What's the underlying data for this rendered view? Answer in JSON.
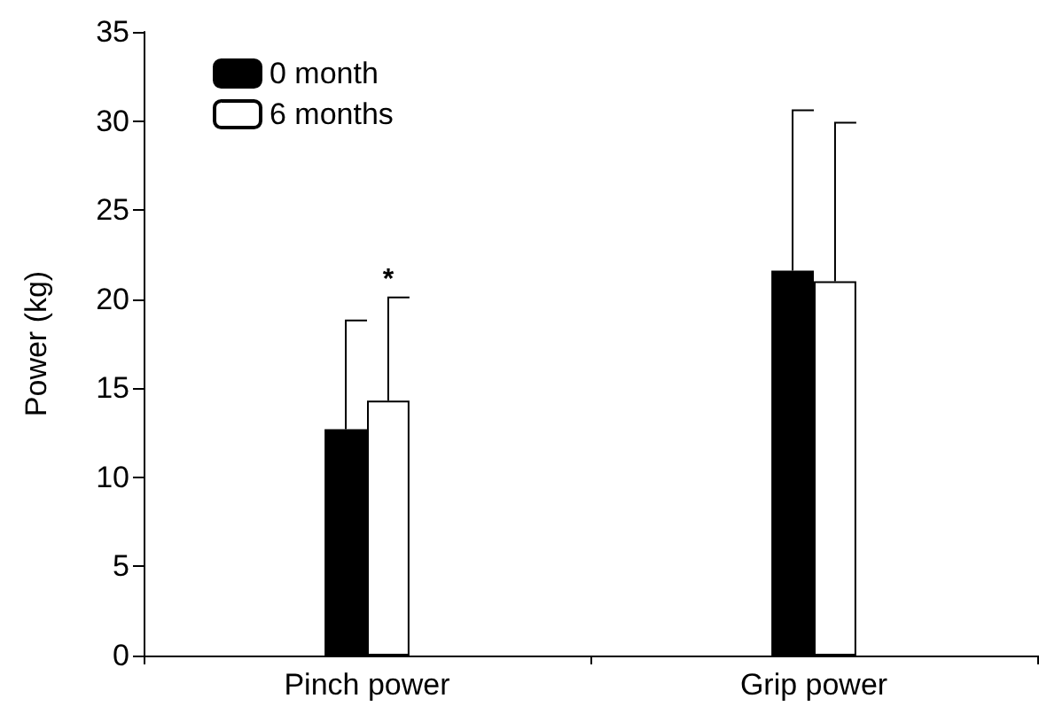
{
  "chart_data": {
    "type": "bar",
    "ylabel": "Power (kg)",
    "categories": [
      "Pinch power",
      "Grip power"
    ],
    "series": [
      {
        "name": "0 month",
        "color": "#000000",
        "values": [
          12.7,
          21.6
        ],
        "errors": [
          [
            12.7,
            18.8
          ],
          [
            21.6,
            30.6
          ]
        ]
      },
      {
        "name": "6 months",
        "color": "#ffffff",
        "values": [
          14.3,
          21.0
        ],
        "errors": [
          [
            14.3,
            20.1
          ],
          [
            21.0,
            29.9
          ]
        ]
      }
    ],
    "ylim": [
      0,
      35
    ],
    "yticks": [
      0,
      5,
      10,
      15,
      20,
      25,
      30,
      35
    ],
    "grid": false,
    "legend": "top left",
    "annotations": [
      "*"
    ]
  }
}
